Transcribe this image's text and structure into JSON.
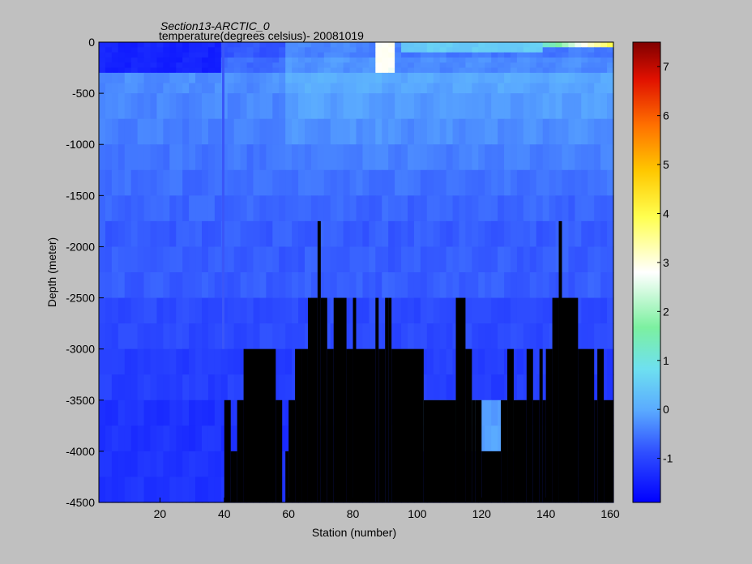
{
  "chart_data": {
    "type": "heatmap",
    "title": "Section13-ARCTIC_0",
    "subtitle": "temperature(degrees  celsius)- 20081019",
    "xlabel": "Station (number)",
    "ylabel": "Depth (meter)",
    "xlim": [
      1,
      161
    ],
    "ylim": [
      -4500,
      0
    ],
    "x_ticks": [
      20,
      40,
      60,
      80,
      100,
      120,
      140,
      160
    ],
    "y_ticks": [
      0,
      -500,
      -1000,
      -1500,
      -2000,
      -2500,
      -3000,
      -3500,
      -4000,
      -4500
    ],
    "colorbar": {
      "range": [
        -1.9,
        7.5
      ],
      "ticks": [
        -1,
        0,
        1,
        2,
        3,
        4,
        5,
        6,
        7
      ],
      "colormap": "jet"
    },
    "depth_levels": [
      0,
      -250,
      -500,
      -1000,
      -1500,
      -1750,
      -2000,
      -2500,
      -3000,
      -3500,
      -4000,
      -4500
    ],
    "background_color": "#c0c0c0",
    "bathymetry_color": "#000000"
  }
}
